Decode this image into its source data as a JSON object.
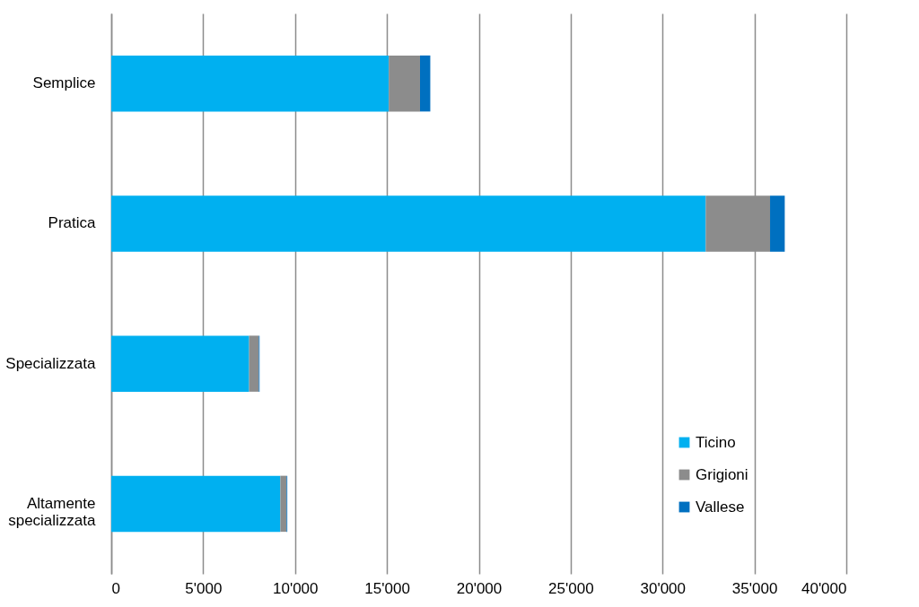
{
  "chart_data": {
    "type": "bar",
    "orientation": "horizontal",
    "stacked": true,
    "categories": [
      "Semplice",
      "Pratica",
      "Specializzata",
      "Altamente specializzata"
    ],
    "series": [
      {
        "name": "Ticino",
        "color": "#00b0f0",
        "values": [
          15100,
          32350,
          7500,
          9200
        ]
      },
      {
        "name": "Grigioni",
        "color": "#8c8c8c",
        "values": [
          1700,
          3500,
          530,
          340
        ]
      },
      {
        "name": "Vallese",
        "color": "#0070c0",
        "values": [
          560,
          800,
          40,
          40
        ]
      }
    ],
    "xlim": [
      0,
      40000
    ],
    "xticks": [
      0,
      {
        "value": 5000,
        "label": "5'000"
      },
      {
        "value": 10000,
        "label": "10'000"
      },
      {
        "value": 15000,
        "label": "15'000"
      },
      {
        "value": 20000,
        "label": "20'000"
      },
      {
        "value": 25000,
        "label": "25'000"
      },
      {
        "value": 30000,
        "label": "30'000"
      },
      {
        "value": 35000,
        "label": "35'000"
      },
      {
        "value": 40000,
        "label": "40'000"
      }
    ],
    "grid": "x",
    "legend": "bottom right"
  }
}
